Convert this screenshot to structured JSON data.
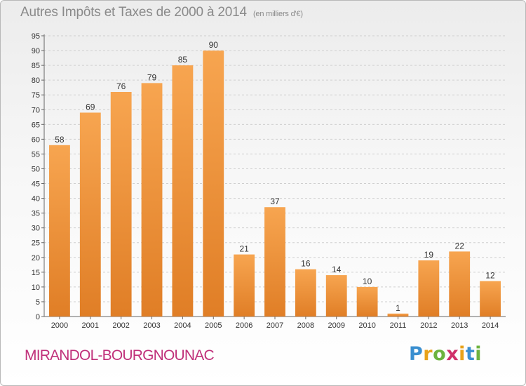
{
  "title": "Autres Impôts et Taxes de 2000 à 2014",
  "subtitle": "(en milliers d'€)",
  "commune": "MIRANDOL-BOURGNOUNAC",
  "logo": {
    "letters": [
      "P",
      "r",
      "o",
      "x",
      "i",
      "t",
      "i"
    ],
    "colors": [
      "#3a8fd0",
      "#e8a21a",
      "#6db33f",
      "#d0306a",
      "#e8a21a",
      "#3a8fd0",
      "#6db33f"
    ]
  },
  "colors": {
    "bar_light": "#f7a550",
    "bar_dark": "#e07e26",
    "grid": "#cfcfcf",
    "axis": "#666666"
  },
  "chart_data": {
    "type": "bar",
    "title": "Autres Impôts et Taxes de 2000 à 2014",
    "subtitle": "(en milliers d'€)",
    "categories": [
      "2000",
      "2001",
      "2002",
      "2003",
      "2004",
      "2005",
      "2006",
      "2007",
      "2008",
      "2009",
      "2010",
      "2011",
      "2012",
      "2013",
      "2014"
    ],
    "values": [
      58,
      69,
      76,
      79,
      85,
      90,
      21,
      37,
      16,
      14,
      10,
      1,
      19,
      22,
      12
    ],
    "ylim": [
      0,
      95
    ],
    "yticks": [
      0,
      5,
      10,
      15,
      20,
      25,
      30,
      35,
      40,
      45,
      50,
      55,
      60,
      65,
      70,
      75,
      80,
      85,
      90,
      95
    ],
    "grid": true,
    "data_labels": true
  }
}
